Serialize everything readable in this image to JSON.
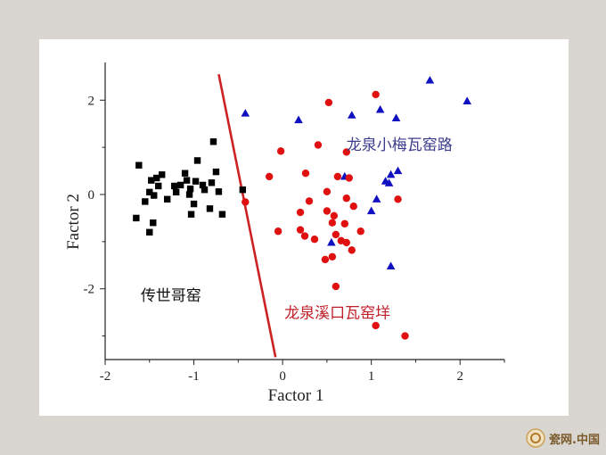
{
  "chart_data": {
    "type": "scatter",
    "xlabel": "Factor 1",
    "ylabel": "Factor 2",
    "xlim": [
      -2,
      2.5
    ],
    "ylim": [
      -3.5,
      2.8
    ],
    "xticks": [
      -2,
      -1,
      0,
      1,
      2
    ],
    "yticks": [
      -2,
      0,
      2
    ],
    "grid": false,
    "series": [
      {
        "name": "传世哥窑",
        "color": "#000000",
        "marker": "square",
        "points": [
          [
            -1.62,
            0.62
          ],
          [
            -1.48,
            0.3
          ],
          [
            -1.42,
            0.35
          ],
          [
            -1.36,
            0.42
          ],
          [
            -1.4,
            0.18
          ],
          [
            -1.5,
            0.05
          ],
          [
            -1.45,
            -0.02
          ],
          [
            -1.55,
            -0.15
          ],
          [
            -1.65,
            -0.5
          ],
          [
            -1.5,
            -0.8
          ],
          [
            -1.46,
            -0.6
          ],
          [
            -1.3,
            -0.1
          ],
          [
            -1.2,
            0.05
          ],
          [
            -1.22,
            0.18
          ],
          [
            -1.15,
            0.2
          ],
          [
            -1.08,
            0.3
          ],
          [
            -1.1,
            0.45
          ],
          [
            -1.05,
            0.0
          ],
          [
            -1.0,
            -0.2
          ],
          [
            -1.04,
            0.12
          ],
          [
            -0.98,
            0.28
          ],
          [
            -0.96,
            0.72
          ],
          [
            -0.9,
            0.2
          ],
          [
            -0.88,
            0.1
          ],
          [
            -0.82,
            -0.3
          ],
          [
            -0.8,
            0.25
          ],
          [
            -0.78,
            1.12
          ],
          [
            -0.75,
            0.48
          ],
          [
            -0.72,
            0.06
          ],
          [
            -0.68,
            -0.42
          ],
          [
            -0.45,
            0.1
          ],
          [
            -1.03,
            -0.42
          ]
        ]
      },
      {
        "name": "龙泉小梅瓦窑路",
        "color": "#1010c0",
        "marker": "triangle",
        "points": [
          [
            -0.42,
            1.72
          ],
          [
            0.18,
            1.58
          ],
          [
            0.78,
            1.68
          ],
          [
            1.1,
            1.8
          ],
          [
            1.28,
            1.62
          ],
          [
            1.66,
            2.42
          ],
          [
            2.08,
            1.98
          ],
          [
            0.7,
            0.38
          ],
          [
            1.3,
            0.5
          ],
          [
            1.22,
            0.42
          ],
          [
            1.16,
            0.28
          ],
          [
            1.2,
            0.24
          ],
          [
            1.06,
            -0.1
          ],
          [
            1.0,
            -0.35
          ],
          [
            0.55,
            -1.02
          ],
          [
            1.22,
            -1.52
          ]
        ]
      },
      {
        "name": "龙泉溪口瓦窑垟",
        "color": "#e01010",
        "marker": "circle",
        "points": [
          [
            0.52,
            1.95
          ],
          [
            1.05,
            2.12
          ],
          [
            -0.02,
            0.92
          ],
          [
            0.4,
            1.05
          ],
          [
            0.72,
            0.9
          ],
          [
            -0.15,
            0.38
          ],
          [
            0.26,
            0.45
          ],
          [
            0.62,
            0.38
          ],
          [
            0.75,
            0.35
          ],
          [
            0.5,
            0.06
          ],
          [
            0.72,
            -0.08
          ],
          [
            0.3,
            -0.14
          ],
          [
            0.8,
            -0.25
          ],
          [
            1.3,
            -0.1
          ],
          [
            -0.42,
            -0.16
          ],
          [
            0.2,
            -0.38
          ],
          [
            0.5,
            -0.35
          ],
          [
            0.58,
            -0.45
          ],
          [
            0.56,
            -0.6
          ],
          [
            0.7,
            -0.62
          ],
          [
            0.88,
            -0.78
          ],
          [
            -0.05,
            -0.78
          ],
          [
            0.2,
            -0.75
          ],
          [
            0.25,
            -0.88
          ],
          [
            0.36,
            -0.95
          ],
          [
            0.6,
            -0.85
          ],
          [
            0.66,
            -0.98
          ],
          [
            0.72,
            -1.02
          ],
          [
            0.78,
            -1.18
          ],
          [
            0.48,
            -1.38
          ],
          [
            0.56,
            -1.32
          ],
          [
            0.6,
            -1.95
          ],
          [
            1.05,
            -2.78
          ],
          [
            1.38,
            -3.0
          ]
        ]
      }
    ],
    "annotations": [
      {
        "text": "传世哥窑",
        "x": -1.6,
        "y": -2.25,
        "color": "#111111"
      },
      {
        "text": "龙泉小梅瓦窑路",
        "x": 0.72,
        "y": 0.95,
        "color": "#3c3c8c"
      },
      {
        "text": "龙泉溪口瓦窑垟",
        "x": 0.02,
        "y": -2.62,
        "color": "#c0202a"
      }
    ],
    "divider": {
      "color": "#cc2222",
      "x1": -0.72,
      "y1": 2.55,
      "x2": -0.08,
      "y2": -3.45
    }
  },
  "watermark": {
    "text": "瓷网.中国"
  }
}
